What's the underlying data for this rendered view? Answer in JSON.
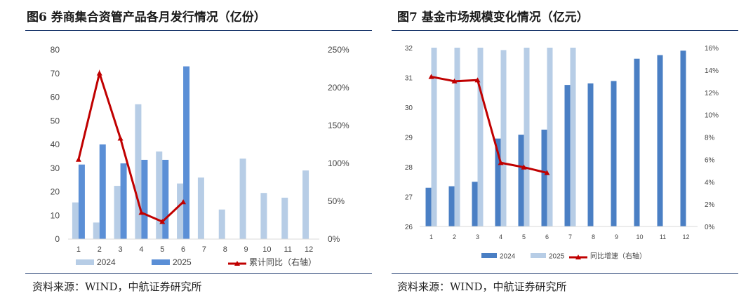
{
  "colors": {
    "light_blue": "#b7cde6",
    "mid_blue": "#5b8fd6",
    "dark_blue": "#4a7fc4",
    "red": "#c00000",
    "rule": "#1e3a6e"
  },
  "left": {
    "title": "图6  券商集合资管产品各月发行情况（亿份）",
    "source": "资料来源：WIND，中航证券研究所"
  },
  "right": {
    "title": "图7  基金市场规模变化情况（亿元）",
    "source": "资料来源：WIND，中航证券研究所"
  },
  "chart_data": [
    {
      "type": "bar",
      "categories": [
        "1",
        "2",
        "3",
        "4",
        "5",
        "6",
        "7",
        "8",
        "9",
        "10",
        "11",
        "12"
      ],
      "series": [
        {
          "name": "2024",
          "axis": "left",
          "values": [
            15.5,
            7,
            22.5,
            57,
            37,
            23.5,
            26,
            12.5,
            34,
            19.5,
            17.5,
            29
          ]
        },
        {
          "name": "2025",
          "axis": "left",
          "values": [
            31.5,
            40,
            32,
            33.5,
            33.5,
            73,
            null,
            null,
            null,
            null,
            null,
            null
          ]
        },
        {
          "name": "累计同比（右轴）",
          "type": "line",
          "axis": "right",
          "values": [
            105,
            219,
            133,
            35,
            23,
            49,
            null,
            null,
            null,
            null,
            null,
            null
          ]
        }
      ],
      "ylim": [
        0,
        80
      ],
      "yticks": [
        "0",
        "10",
        "20",
        "30",
        "40",
        "50",
        "60",
        "70",
        "80"
      ],
      "y2lim": [
        0,
        250
      ],
      "y2ticks": [
        "0%",
        "50%",
        "100%",
        "150%",
        "200%",
        "250%"
      ],
      "legend": "bottom",
      "grid": false
    },
    {
      "type": "bar",
      "categories": [
        "1",
        "2",
        "3",
        "4",
        "5",
        "6",
        "7",
        "8",
        "9",
        "10",
        "11",
        "12"
      ],
      "series": [
        {
          "name": "2024",
          "axis": "left",
          "values": [
            27.3,
            27.35,
            27.5,
            28.95,
            29.08,
            29.25,
            30.75,
            30.8,
            30.88,
            31.63,
            31.75,
            31.9
          ]
        },
        {
          "name": "2025",
          "axis": "left",
          "values": [
            32,
            32,
            32,
            31.92,
            32,
            32,
            32,
            null,
            null,
            null,
            null,
            null
          ]
        },
        {
          "name": "同比增速（右轴）",
          "type": "line",
          "axis": "right",
          "values": [
            13.4,
            13.0,
            13.1,
            5.7,
            5.3,
            4.8,
            null,
            null,
            null,
            null,
            null,
            null
          ]
        }
      ],
      "ylim": [
        26,
        32
      ],
      "yticks": [
        "26",
        "27",
        "28",
        "29",
        "30",
        "31",
        "32"
      ],
      "y2lim": [
        0,
        16
      ],
      "y2ticks": [
        "0%",
        "2%",
        "4%",
        "6%",
        "8%",
        "10%",
        "12%",
        "14%",
        "16%"
      ],
      "legend": "bottom",
      "grid": false
    }
  ]
}
